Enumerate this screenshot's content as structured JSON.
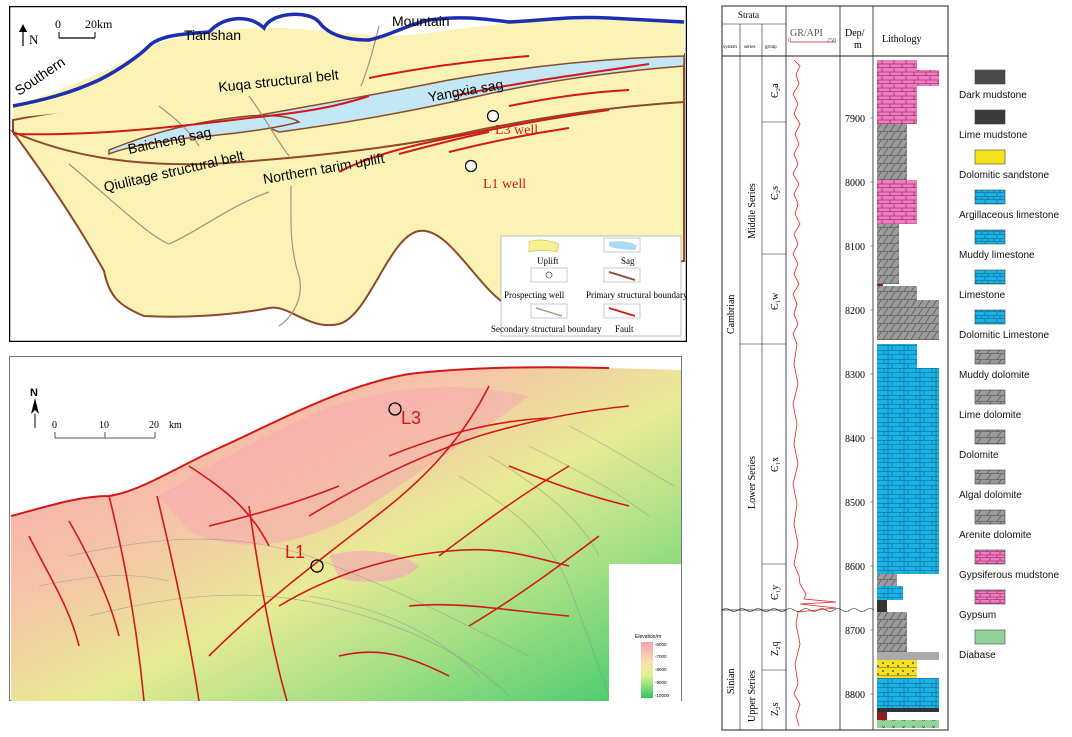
{
  "colors": {
    "uplift": "#fbf3b6",
    "sag": "#c4e7f5",
    "mountain_line": "#1d2fb0",
    "fault": "#d21818",
    "boundary": "#8c4a2a",
    "secondary": "#a8907a",
    "limestone": "#1bb3e6",
    "dolomite": "#9a9a9a",
    "gypsum": "#f27cc0",
    "sandstone": "#f5e21d",
    "diabase": "#93d29a",
    "dark_mudstone": "#3a3a3a"
  },
  "structural_map": {
    "north_label": "N",
    "scale_zero": "0",
    "scale_end": "20km",
    "labels": {
      "tianshan": "Tianshan",
      "mountain": "Mountain",
      "southern": "Southern",
      "kuqa": "Kuqa structural belt",
      "yangxia": "Yangxia sag",
      "baicheng": "Baicheng sag",
      "qiulitage": "Qiulitage structural belt",
      "northern_tarim": "Northern tarim uplift",
      "l3_well": "L3 well",
      "l1_well": "L1 well"
    },
    "legend": {
      "uplift": "Uplift",
      "sag": "Sag",
      "prospecting_well": "Prospecting well",
      "primary_boundary": "Primary structural boundary",
      "secondary_boundary": "Secondary structural boundary",
      "fault": "Fault"
    }
  },
  "elevation_map": {
    "north_label": "N",
    "scale_ticks": [
      "0",
      "10",
      "20"
    ],
    "scale_unit": "km",
    "well_l1": "L1",
    "well_l3": "L3",
    "colorbar_title": "Elevation/m",
    "colorbar_ticks": [
      "-6000",
      "-7000",
      "-8000",
      "-9000",
      "-10000"
    ]
  },
  "column": {
    "strata_header": "Strata",
    "system_header": "system",
    "series_header": "series",
    "group_header": "group",
    "gr_header": "GR/API",
    "gr_min": "0",
    "gr_max": "250",
    "depth_header_1": "Dep/",
    "depth_header_2": "m",
    "lithology_header": "Lithology",
    "systems": [
      "Cambrian",
      "Sinian"
    ],
    "series": [
      "Middle Series",
      "Lower Series",
      "Upper Series"
    ],
    "groups": [
      "Є₂a",
      "Є₂s",
      "Є₁w",
      "Є₁x",
      "Є₁y",
      "Z₂q",
      "Z₂s"
    ],
    "depths": [
      "7900",
      "8000",
      "8100",
      "8200",
      "8300",
      "8400",
      "8500",
      "8600",
      "8700",
      "8800"
    ]
  },
  "lithology_legend": [
    "Dark mudstone",
    "Lime mudstone",
    "Dolomitic sandstone",
    "Argillaceous limestone",
    "Muddy limestone",
    "Limestone",
    "Dolomitic Limestone",
    "Muddy dolomite",
    "Lime dolomite",
    "Dolomite",
    "Algal dolomite",
    "Arenite dolomite",
    "Gypsiferous mudstone",
    "Gypsum",
    "Diabase"
  ]
}
